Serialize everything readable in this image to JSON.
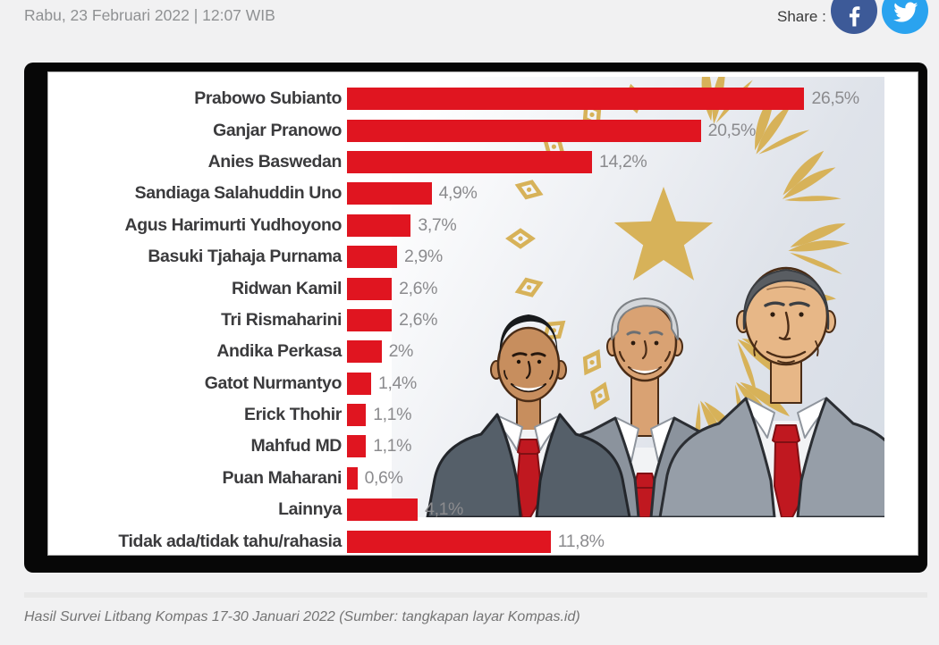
{
  "page_background": "#f1f1f2",
  "header": {
    "date_line": "Rabu, 23 Februari 2022 | 12:07 WIB",
    "share_label": "Share :",
    "share": [
      {
        "platform": "Facebook",
        "icon": "facebook-icon",
        "color": "#3d5a98"
      },
      {
        "platform": "Twitter",
        "icon": "twitter-icon",
        "color": "#2aa3ef"
      }
    ]
  },
  "chart_data": {
    "type": "bar",
    "orientation": "horizontal",
    "unit": "%",
    "decimal_separator": ",",
    "categories": [
      "Prabowo Subianto",
      "Ganjar Pranowo",
      "Anies Baswedan",
      "Sandiaga Salahuddin Uno",
      "Agus Harimurti Yudhoyono",
      "Basuki Tjahaja Purnama",
      "Ridwan Kamil",
      "Tri Rismaharini",
      "Andika Perkasa",
      "Gatot Nurmantyo",
      "Erick Thohir",
      "Mahfud MD",
      "Puan Maharani",
      "Lainnya",
      "Tidak ada/tidak tahu/rahasia"
    ],
    "values": [
      26.5,
      20.5,
      14.2,
      4.9,
      3.7,
      2.9,
      2.6,
      2.6,
      2,
      1.4,
      1.1,
      1.1,
      0.6,
      4.1,
      11.8
    ],
    "value_labels": [
      "26,5%",
      "20,5%",
      "14,2%",
      "4,9%",
      "3,7%",
      "2,9%",
      "2,6%",
      "2,6%",
      "2%",
      "1,4%",
      "1,1%",
      "1,1%",
      "0,6%",
      "4,1%",
      "11,8%"
    ],
    "bar_color": "#e01520",
    "category_label_color": "#3b3b3d",
    "value_label_color": "#8b8b8e",
    "xlim": [
      0,
      30
    ],
    "grid": false,
    "legend": null,
    "background_art": "cartoon of three presidential candidates with gold star and wreath emblem"
  },
  "caption": "Hasil Survei Litbang Kompas 17-30 Januari 2022 (Sumber: tangkapan layar Kompas.id)"
}
